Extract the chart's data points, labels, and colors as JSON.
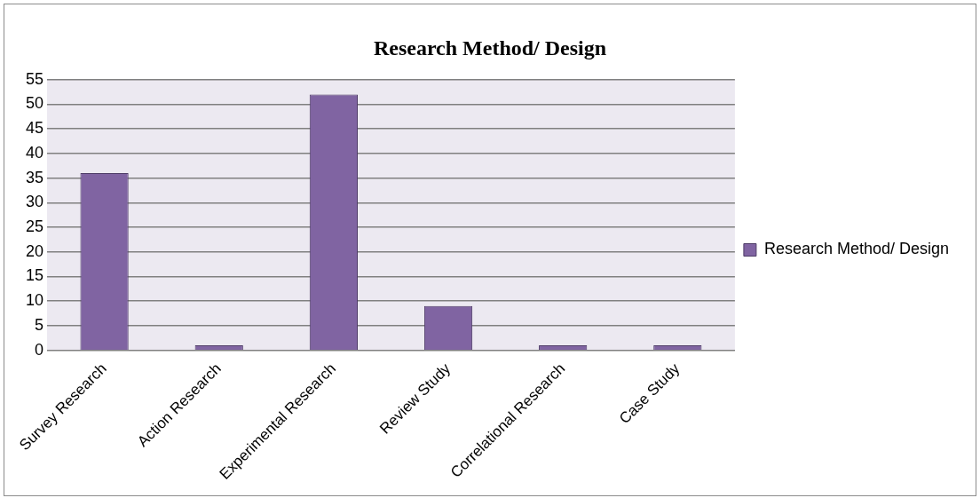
{
  "chart_data": {
    "type": "bar",
    "title": "Research Method/ Design",
    "categories": [
      "Survey Research",
      "Action Research",
      "Experimental Research",
      "Review Study",
      "Correlational Research",
      "Case Study"
    ],
    "series": [
      {
        "name": "Research Method/ Design",
        "color": "#8064a2",
        "values": [
          36,
          1,
          52,
          9,
          1,
          1
        ]
      }
    ],
    "ylim": [
      0,
      55
    ],
    "yticks": [
      0,
      5,
      10,
      15,
      20,
      25,
      30,
      35,
      40,
      45,
      50,
      55
    ],
    "grid": "y",
    "legend": "right"
  }
}
